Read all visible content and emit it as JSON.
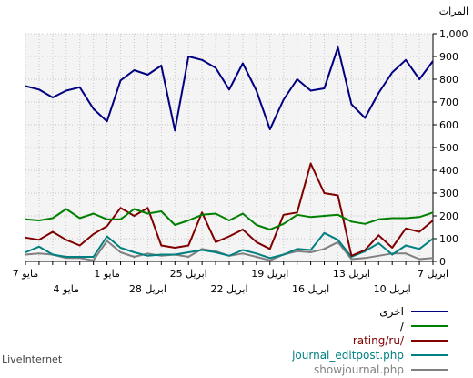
{
  "chart_data": {
    "type": "line",
    "ylabel": "المرات",
    "ylim": [
      0,
      1000
    ],
    "y_ticks": [
      "0",
      "100",
      "200",
      "300",
      "400",
      "500",
      "600",
      "700",
      "800",
      "900",
      "1,000"
    ],
    "x_labels_row1": [
      {
        "i": 0,
        "label": "7 مايو"
      },
      {
        "i": 6,
        "label": "1 مايو"
      },
      {
        "i": 12,
        "label": "25 ابريل"
      },
      {
        "i": 18,
        "label": "19 ابريل"
      },
      {
        "i": 24,
        "label": "13 ابريل"
      },
      {
        "i": 30,
        "label": "7 ابريل"
      }
    ],
    "x_labels_row2": [
      {
        "i": 3,
        "label": "4 مايو"
      },
      {
        "i": 9,
        "label": "28 ابريل"
      },
      {
        "i": 15,
        "label": "22 ابريل"
      },
      {
        "i": 21,
        "label": "16 ابريل"
      },
      {
        "i": 27,
        "label": "10 ابريل"
      }
    ],
    "grid": true,
    "series": [
      {
        "name": "اخرى",
        "color": "#000080",
        "values": [
          770,
          755,
          720,
          750,
          765,
          670,
          615,
          795,
          840,
          820,
          860,
          575,
          900,
          885,
          850,
          755,
          870,
          750,
          580,
          710,
          800,
          750,
          760,
          940,
          690,
          630,
          740,
          830,
          885,
          800,
          880
        ]
      },
      {
        "name": "/",
        "color": "#008000",
        "values": [
          185,
          180,
          190,
          230,
          190,
          210,
          185,
          185,
          230,
          210,
          220,
          160,
          180,
          205,
          210,
          180,
          210,
          160,
          140,
          165,
          205,
          195,
          200,
          205,
          175,
          165,
          185,
          190,
          190,
          195,
          215
        ]
      },
      {
        "name": "rating/ru/",
        "color": "#800000",
        "values": [
          105,
          95,
          130,
          95,
          70,
          120,
          155,
          235,
          200,
          235,
          70,
          60,
          70,
          215,
          85,
          110,
          140,
          85,
          55,
          205,
          215,
          430,
          300,
          290,
          25,
          50,
          115,
          60,
          145,
          130,
          180
        ]
      },
      {
        "name": "journal_editpost.php",
        "color": "#008080",
        "values": [
          40,
          65,
          30,
          20,
          20,
          20,
          110,
          60,
          40,
          25,
          30,
          30,
          40,
          50,
          40,
          25,
          50,
          35,
          15,
          30,
          55,
          50,
          125,
          95,
          20,
          45,
          80,
          30,
          70,
          55,
          100
        ]
      },
      {
        "name": "showjournal.php",
        "color": "#808080",
        "values": [
          30,
          35,
          30,
          15,
          15,
          5,
          90,
          40,
          20,
          35,
          25,
          30,
          20,
          55,
          45,
          25,
          35,
          20,
          5,
          30,
          45,
          40,
          55,
          85,
          10,
          15,
          25,
          35,
          35,
          10,
          15
        ]
      }
    ]
  },
  "footer": {
    "brand": "LiveInternet"
  }
}
